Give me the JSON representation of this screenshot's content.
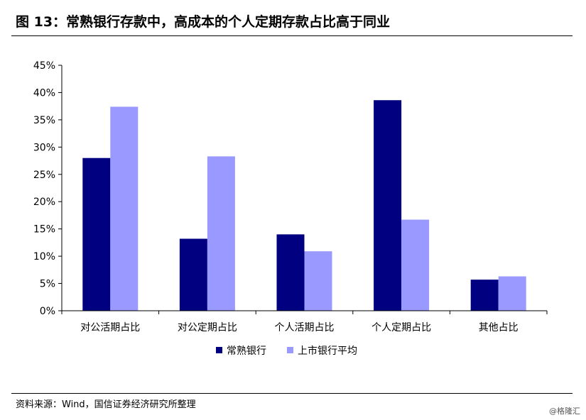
{
  "title": "图 13：常熟银行存款中，高成本的个人定期存款占比高于同业",
  "source": "资料来源：Wind，国信证券经济研究所整理",
  "watermark": "@格隆汇",
  "colors": {
    "series1": "#000080",
    "series2": "#9999ff",
    "axis": "#000000"
  },
  "chart_data": {
    "type": "bar",
    "categories": [
      "对公活期占比",
      "对公定期占比",
      "个人活期占比",
      "个人定期占比",
      "其他占比"
    ],
    "series": [
      {
        "name": "常熟银行",
        "values": [
          28.0,
          13.2,
          14.0,
          38.6,
          5.7
        ]
      },
      {
        "name": "上市银行平均",
        "values": [
          37.4,
          28.3,
          10.9,
          16.7,
          6.3
        ]
      }
    ],
    "ylim": [
      0,
      45
    ],
    "yticks": [
      "0%",
      "5%",
      "10%",
      "15%",
      "20%",
      "25%",
      "30%",
      "35%",
      "40%",
      "45%"
    ],
    "xlabel": "",
    "ylabel": "",
    "grid": false,
    "legend": "bottom-center"
  }
}
